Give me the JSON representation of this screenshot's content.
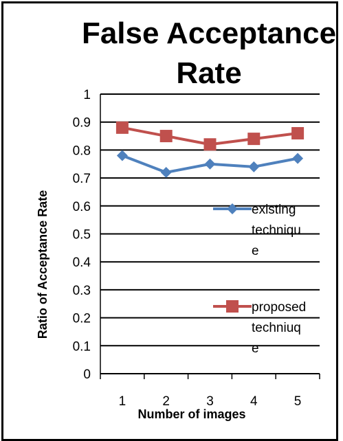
{
  "chart_data": {
    "type": "line",
    "title_lines": [
      "False Acceptance",
      "Rate"
    ],
    "xlabel": "Number of images",
    "ylabel": "Ratio of Acceptance Rate",
    "categories": [
      "1",
      "2",
      "3",
      "4",
      "5"
    ],
    "ylim": [
      0,
      1
    ],
    "yticks": [
      "0",
      "0.1",
      "0.2",
      "0.3",
      "0.4",
      "0.5",
      "0.6",
      "0.7",
      "0.8",
      "0.9",
      "1"
    ],
    "grid": true,
    "legend_position": "right",
    "series": [
      {
        "name": "existing technique",
        "legend_lines": [
          "existing",
          "techniqu",
          "e"
        ],
        "color": "#4F81BD",
        "marker": "diamond",
        "values": [
          0.78,
          0.72,
          0.75,
          0.74,
          0.77
        ]
      },
      {
        "name": "proposed techniuqe",
        "legend_lines": [
          "proposed",
          "techniuq",
          "e"
        ],
        "color": "#C0504D",
        "marker": "square",
        "values": [
          0.88,
          0.85,
          0.82,
          0.84,
          0.86
        ]
      }
    ]
  }
}
